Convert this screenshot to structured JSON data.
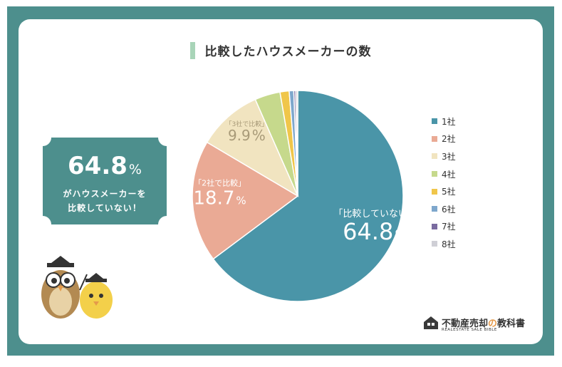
{
  "title": "比較したハウスメーカーの数",
  "callout": {
    "value": "64.8",
    "unit": "%",
    "line1": "がハウスメーカーを",
    "line2": "比較していない！"
  },
  "slice_labels": [
    {
      "text": "「比較していない」",
      "value": "64.8",
      "unit": "%"
    },
    {
      "text": "「2社で比較」",
      "value": "18.7",
      "unit": "%"
    },
    {
      "text": "「3社で比較」",
      "value": "9.9",
      "unit": "%"
    }
  ],
  "logo": {
    "name_a": "不動産売却",
    "name_b": "の",
    "name_c": "教科書",
    "sub": "REALESTATE SALE BIBLE"
  },
  "colors": {
    "frame": "#4d8f8d",
    "accent_bar": "#a8d4b8",
    "callout": "#4d8f8d",
    "logo_no": "#e59a4a"
  },
  "chart_data": {
    "type": "pie",
    "title": "比較したハウスメーカーの数",
    "categories": [
      "1社",
      "2社",
      "3社",
      "4社",
      "5社",
      "6社",
      "7社",
      "8社"
    ],
    "values": [
      64.8,
      18.7,
      9.9,
      3.9,
      1.4,
      0.7,
      0.3,
      0.3
    ],
    "colors": [
      "#4a95a8",
      "#eaaa95",
      "#f1e4c0",
      "#c6d98c",
      "#f0c64a",
      "#7ea7cc",
      "#7a6ba0",
      "#cfcfd6"
    ],
    "legend_position": "right"
  }
}
